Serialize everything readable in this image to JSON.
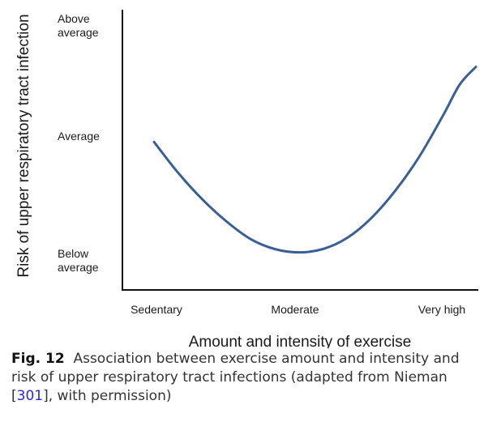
{
  "chart_data": {
    "type": "line",
    "title": "",
    "xlabel": "Amount and intensity of exercise",
    "ylabel": "Risk of upper respiratory tract infection",
    "x_categories": [
      "Sedentary",
      "Moderate",
      "Very high"
    ],
    "y_categories": [
      {
        "lines": [
          "Above",
          "average"
        ]
      },
      {
        "lines": [
          "Average"
        ]
      },
      {
        "lines": [
          "Below",
          "average"
        ]
      }
    ],
    "xlim": [
      0,
      2
    ],
    "ylim": [
      -1.15,
      1.0
    ],
    "grid": false,
    "series": [
      {
        "color": "#3a5e96",
        "points": [
          [
            0.0,
            0.0
          ],
          [
            0.15,
            -0.28
          ],
          [
            0.3,
            -0.52
          ],
          [
            0.45,
            -0.72
          ],
          [
            0.6,
            -0.88
          ],
          [
            0.75,
            -0.97
          ],
          [
            0.9,
            -1.0
          ],
          [
            1.05,
            -0.97
          ],
          [
            1.2,
            -0.87
          ],
          [
            1.35,
            -0.69
          ],
          [
            1.5,
            -0.44
          ],
          [
            1.65,
            -0.13
          ],
          [
            1.8,
            0.25
          ],
          [
            1.9,
            0.52
          ],
          [
            2.0,
            0.68
          ]
        ]
      }
    ]
  },
  "caption": {
    "label": "Fig. 12",
    "text_before": "Association between exercise amount and intensity and risk of upper respiratory tract infections (adapted from Nieman [",
    "ref": "301",
    "text_after": "], with permission)"
  }
}
